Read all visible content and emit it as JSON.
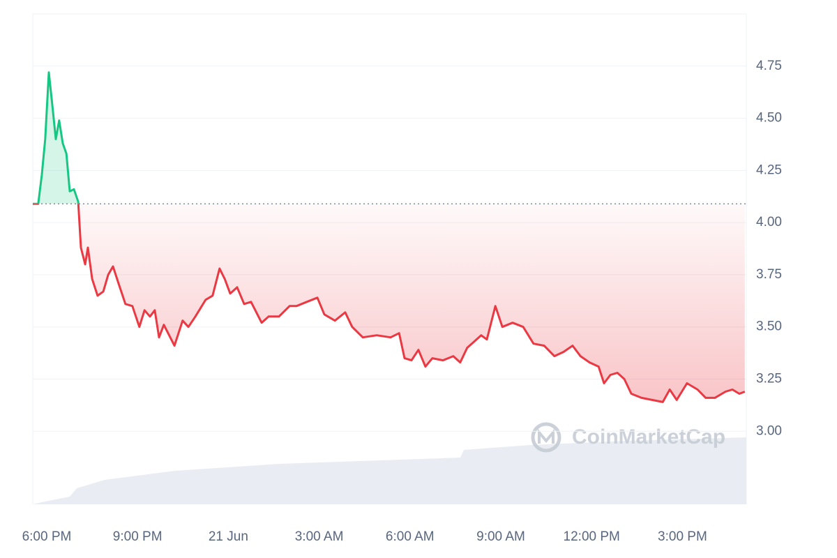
{
  "chart_data": {
    "type": "line",
    "watermark": "CoinMarketCap",
    "ylim": [
      2.65,
      5.0
    ],
    "yticks": [
      {
        "value": 3,
        "label": "3.00"
      },
      3.25,
      {
        "value": 3.5,
        "label": "3.50"
      },
      3.75,
      {
        "value": 4,
        "label": "4.00"
      },
      4.25,
      {
        "value": 4.5,
        "label": "4.50"
      },
      4.75
    ],
    "xlim": [
      -0.46,
      23.11
    ],
    "xticks": [
      {
        "value": 0,
        "label": "6:00 PM"
      },
      {
        "value": 3,
        "label": "9:00 PM"
      },
      {
        "value": 6,
        "label": "21 Jun"
      },
      {
        "value": 9,
        "label": "3:00 AM"
      },
      {
        "value": 12,
        "label": "6:00 AM"
      },
      {
        "value": 15,
        "label": "9:00 AM"
      },
      {
        "value": 18,
        "label": "12:00 PM"
      },
      {
        "value": 21,
        "label": "3:00 PM"
      }
    ],
    "baseline": 4.09,
    "grid": true,
    "color_up": "#16c784",
    "color_down": "#ea3943",
    "x": [
      -0.46,
      -0.28,
      -0.16,
      -0.05,
      0.07,
      0.18,
      0.3,
      0.41,
      0.53,
      0.65,
      0.76,
      0.9,
      1.04,
      1.13,
      1.27,
      1.36,
      1.5,
      1.68,
      1.87,
      2.03,
      2.19,
      2.37,
      2.6,
      2.83,
      3.06,
      3.23,
      3.41,
      3.57,
      3.71,
      3.87,
      4.22,
      4.49,
      4.68,
      4.91,
      5.25,
      5.48,
      5.71,
      5.88,
      6.06,
      6.29,
      6.52,
      6.75,
      7.1,
      7.33,
      7.67,
      8.02,
      8.25,
      8.59,
      8.94,
      9.17,
      9.52,
      9.86,
      10.09,
      10.44,
      10.9,
      11.36,
      11.64,
      11.82,
      12.05,
      12.28,
      12.51,
      12.74,
      13.09,
      13.43,
      13.66,
      13.89,
      14.12,
      14.35,
      14.54,
      14.82,
      15.05,
      15.39,
      15.74,
      16.08,
      16.43,
      16.77,
      17.07,
      17.37,
      17.63,
      17.93,
      18.23,
      18.41,
      18.62,
      18.85,
      19.08,
      19.31,
      19.65,
      20.0,
      20.35,
      20.58,
      20.81,
      21.15,
      21.5,
      21.77,
      22.07,
      22.42,
      22.65,
      22.88,
      23.06
    ],
    "values": [
      4.09,
      4.09,
      4.23,
      4.4,
      4.72,
      4.57,
      4.4,
      4.49,
      4.38,
      4.33,
      4.15,
      4.16,
      4.1,
      3.88,
      3.8,
      3.88,
      3.73,
      3.65,
      3.67,
      3.75,
      3.79,
      3.71,
      3.61,
      3.6,
      3.5,
      3.58,
      3.55,
      3.58,
      3.45,
      3.51,
      3.41,
      3.53,
      3.5,
      3.55,
      3.63,
      3.65,
      3.78,
      3.73,
      3.66,
      3.69,
      3.61,
      3.62,
      3.52,
      3.55,
      3.55,
      3.6,
      3.6,
      3.62,
      3.64,
      3.56,
      3.53,
      3.57,
      3.5,
      3.45,
      3.46,
      3.45,
      3.47,
      3.35,
      3.34,
      3.39,
      3.31,
      3.35,
      3.34,
      3.36,
      3.33,
      3.4,
      3.43,
      3.46,
      3.44,
      3.6,
      3.5,
      3.52,
      3.5,
      3.42,
      3.41,
      3.36,
      3.38,
      3.41,
      3.36,
      3.33,
      3.31,
      3.23,
      3.27,
      3.28,
      3.25,
      3.18,
      3.16,
      3.15,
      3.14,
      3.2,
      3.15,
      3.23,
      3.2,
      3.16,
      3.16,
      3.19,
      3.2,
      3.18,
      3.19
    ]
  }
}
